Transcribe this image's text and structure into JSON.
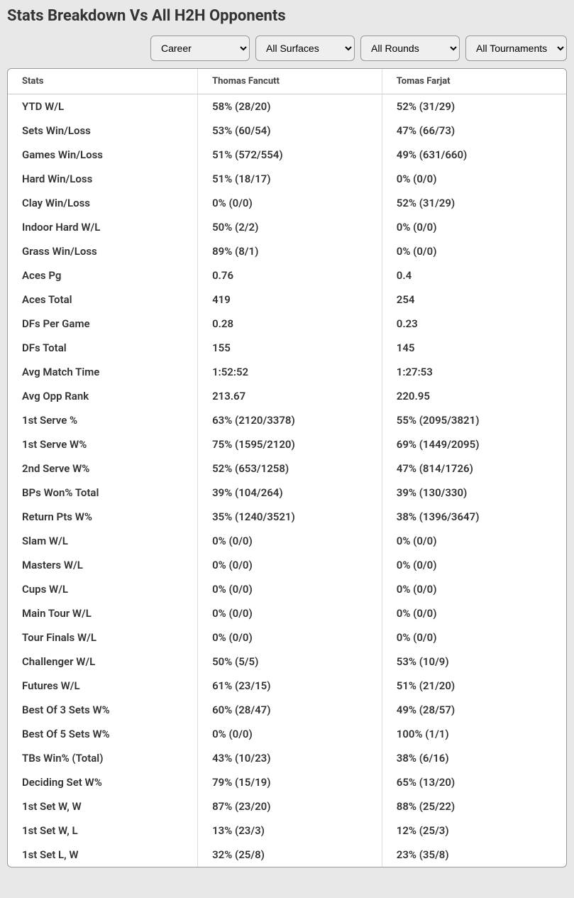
{
  "title": "Stats Breakdown Vs All H2H Opponents",
  "filters": {
    "period": "Career",
    "surface": "All Surfaces",
    "round": "All Rounds",
    "tournament": "All Tournaments"
  },
  "table": {
    "headers": {
      "stats": "Stats",
      "player1": "Thomas Fancutt",
      "player2": "Tomas Farjat"
    },
    "rows": [
      {
        "stat": "YTD W/L",
        "p1": "58% (28/20)",
        "p2": "52% (31/29)"
      },
      {
        "stat": "Sets Win/Loss",
        "p1": "53% (60/54)",
        "p2": "47% (66/73)"
      },
      {
        "stat": "Games Win/Loss",
        "p1": "51% (572/554)",
        "p2": "49% (631/660)"
      },
      {
        "stat": "Hard Win/Loss",
        "p1": "51% (18/17)",
        "p2": "0% (0/0)"
      },
      {
        "stat": "Clay Win/Loss",
        "p1": "0% (0/0)",
        "p2": "52% (31/29)"
      },
      {
        "stat": "Indoor Hard W/L",
        "p1": "50% (2/2)",
        "p2": "0% (0/0)"
      },
      {
        "stat": "Grass Win/Loss",
        "p1": "89% (8/1)",
        "p2": "0% (0/0)"
      },
      {
        "stat": "Aces Pg",
        "p1": "0.76",
        "p2": "0.4"
      },
      {
        "stat": "Aces Total",
        "p1": "419",
        "p2": "254"
      },
      {
        "stat": "DFs Per Game",
        "p1": "0.28",
        "p2": "0.23"
      },
      {
        "stat": "DFs Total",
        "p1": "155",
        "p2": "145"
      },
      {
        "stat": "Avg Match Time",
        "p1": "1:52:52",
        "p2": "1:27:53"
      },
      {
        "stat": "Avg Opp Rank",
        "p1": "213.67",
        "p2": "220.95"
      },
      {
        "stat": "1st Serve %",
        "p1": "63% (2120/3378)",
        "p2": "55% (2095/3821)"
      },
      {
        "stat": "1st Serve W%",
        "p1": "75% (1595/2120)",
        "p2": "69% (1449/2095)"
      },
      {
        "stat": "2nd Serve W%",
        "p1": "52% (653/1258)",
        "p2": "47% (814/1726)"
      },
      {
        "stat": "BPs Won% Total",
        "p1": "39% (104/264)",
        "p2": "39% (130/330)"
      },
      {
        "stat": "Return Pts W%",
        "p1": "35% (1240/3521)",
        "p2": "38% (1396/3647)"
      },
      {
        "stat": "Slam W/L",
        "p1": "0% (0/0)",
        "p2": "0% (0/0)"
      },
      {
        "stat": "Masters W/L",
        "p1": "0% (0/0)",
        "p2": "0% (0/0)"
      },
      {
        "stat": "Cups W/L",
        "p1": "0% (0/0)",
        "p2": "0% (0/0)"
      },
      {
        "stat": "Main Tour W/L",
        "p1": "0% (0/0)",
        "p2": "0% (0/0)"
      },
      {
        "stat": "Tour Finals W/L",
        "p1": "0% (0/0)",
        "p2": "0% (0/0)"
      },
      {
        "stat": "Challenger W/L",
        "p1": "50% (5/5)",
        "p2": "53% (10/9)"
      },
      {
        "stat": "Futures W/L",
        "p1": "61% (23/15)",
        "p2": "51% (21/20)"
      },
      {
        "stat": "Best Of 3 Sets W%",
        "p1": "60% (28/47)",
        "p2": "49% (28/57)"
      },
      {
        "stat": "Best Of 5 Sets W%",
        "p1": "0% (0/0)",
        "p2": "100% (1/1)"
      },
      {
        "stat": "TBs Win% (Total)",
        "p1": "43% (10/23)",
        "p2": "38% (6/16)"
      },
      {
        "stat": "Deciding Set W%",
        "p1": "79% (15/19)",
        "p2": "65% (13/20)"
      },
      {
        "stat": "1st Set W, W",
        "p1": "87% (23/20)",
        "p2": "88% (25/22)"
      },
      {
        "stat": "1st Set W, L",
        "p1": "13% (23/3)",
        "p2": "12% (25/3)"
      },
      {
        "stat": "1st Set L, W",
        "p1": "32% (25/8)",
        "p2": "23% (35/8)"
      }
    ]
  }
}
